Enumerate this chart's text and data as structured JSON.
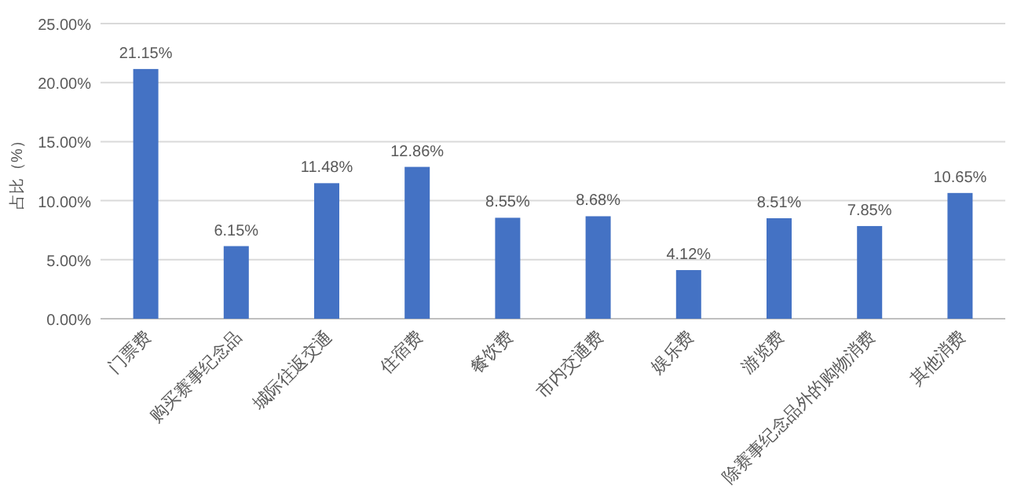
{
  "chart_data": {
    "type": "bar",
    "ylabel": "占比（%）",
    "categories": [
      "门票费",
      "购买赛事纪念品",
      "城际往返交通",
      "住宿费",
      "餐饮费",
      "市内交通费",
      "娱乐费",
      "游览费",
      "除赛事纪念品外的购物消费",
      "其他消费"
    ],
    "values": [
      21.15,
      6.15,
      11.48,
      12.86,
      8.55,
      8.68,
      4.12,
      8.51,
      7.85,
      10.65
    ],
    "value_labels": [
      "21.15%",
      "6.15%",
      "11.48%",
      "12.86%",
      "8.55%",
      "8.68%",
      "4.12%",
      "8.51%",
      "7.85%",
      "10.65%"
    ],
    "color": "#4472c4",
    "ylim": [
      0,
      25
    ],
    "yticks": [
      {
        "value": 0,
        "label": "0.00%"
      },
      {
        "value": 5,
        "label": "5.00%"
      },
      {
        "value": 10,
        "label": "10.00%"
      },
      {
        "value": 15,
        "label": "15.00%"
      },
      {
        "value": 20,
        "label": "20.00%"
      },
      {
        "value": 25,
        "label": "25.00%"
      }
    ],
    "grid": "y"
  }
}
